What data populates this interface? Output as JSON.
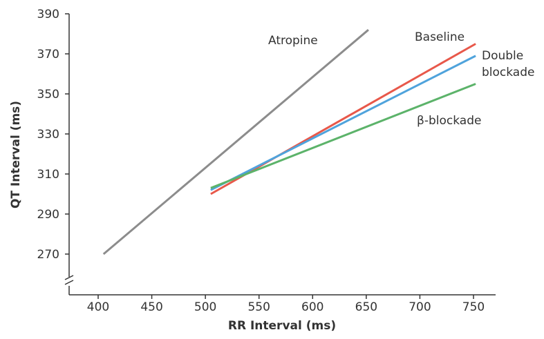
{
  "chart_data": {
    "type": "line",
    "xlabel": "RR Interval (ms)",
    "ylabel": "QT Interval (ms)",
    "xlim": [
      380,
      760
    ],
    "ylim": [
      250,
      390
    ],
    "x_ticks": [
      400,
      450,
      500,
      550,
      600,
      650,
      700,
      750
    ],
    "y_ticks": [
      270,
      290,
      310,
      330,
      350,
      370,
      390
    ],
    "y_axis_break": true,
    "grid": false,
    "legend": "inline-labels",
    "series": [
      {
        "name": "Atropine",
        "color": "#8c8c8c",
        "x": [
          405,
          652
        ],
        "y": [
          270,
          382
        ]
      },
      {
        "name": "Baseline",
        "color": "#e8584a",
        "x": [
          505,
          752
        ],
        "y": [
          300,
          375
        ]
      },
      {
        "name": "Double\nblockade",
        "color": "#4fa3dc",
        "x": [
          505,
          752
        ],
        "y": [
          302,
          369
        ]
      },
      {
        "name": "β-blockade",
        "color": "#5cb36a",
        "x": [
          505,
          752
        ],
        "y": [
          303,
          355
        ]
      }
    ]
  }
}
